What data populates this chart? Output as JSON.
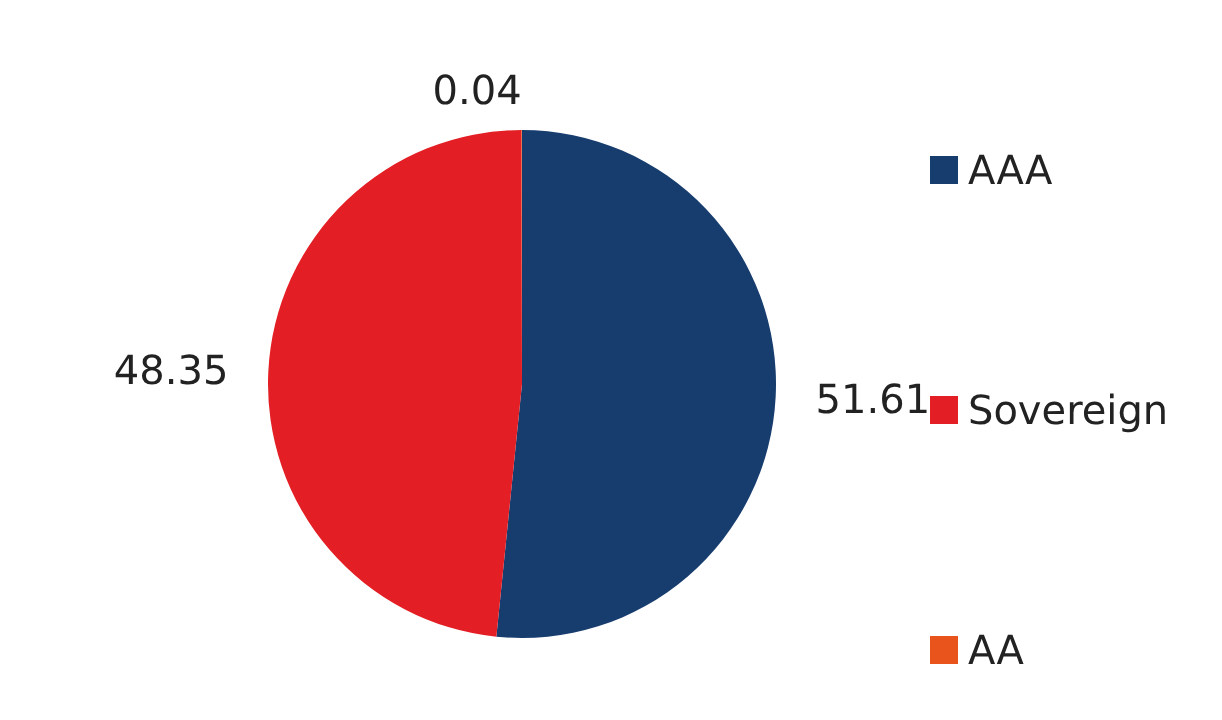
{
  "chart_data": {
    "type": "pie",
    "categories": [
      "AAA",
      "Sovereign",
      "AA"
    ],
    "values": [
      51.61,
      48.35,
      0.04
    ],
    "colors": [
      "#173d6e",
      "#e31e24",
      "#e8541c"
    ],
    "data_labels": true,
    "legend": "right"
  }
}
